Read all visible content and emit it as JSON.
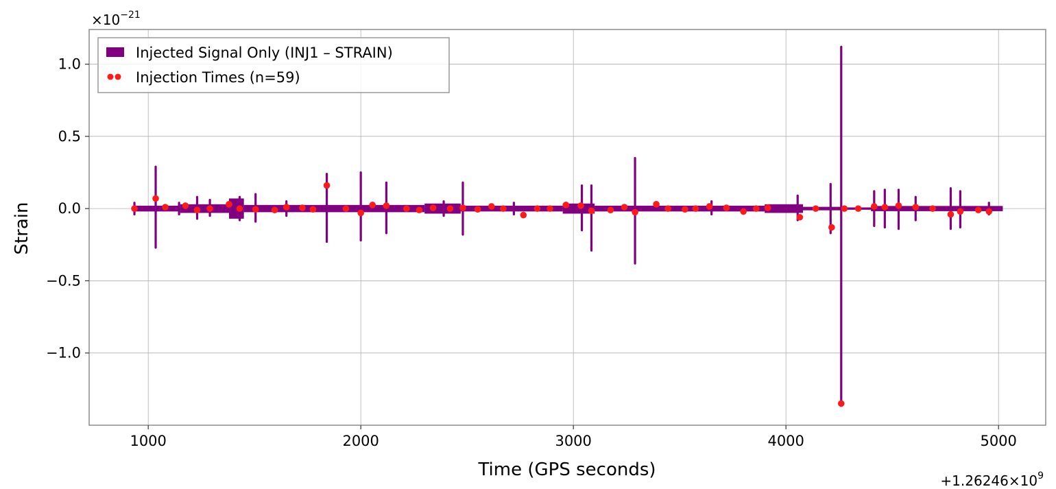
{
  "chart_data": {
    "type": "line",
    "title": "",
    "xlabel": "Time (GPS seconds)",
    "ylabel": "Strain",
    "x_offset_label": "+1.26246×10",
    "x_offset_exp": "9",
    "y_scale_label": "×10",
    "y_scale_exp": "−21",
    "xlim": [
      722,
      5222
    ],
    "ylim": [
      -1.5,
      1.24
    ],
    "x_ticks": [
      {
        "value": 1000,
        "label": "1000"
      },
      {
        "value": 2000,
        "label": "2000"
      },
      {
        "value": 3000,
        "label": "3000"
      },
      {
        "value": 4000,
        "label": "4000"
      },
      {
        "value": 5000,
        "label": "5000"
      }
    ],
    "y_ticks": [
      {
        "value": 1.0,
        "label": "1.0"
      },
      {
        "value": 0.5,
        "label": "0.5"
      },
      {
        "value": 0.0,
        "label": "0.0"
      },
      {
        "value": -0.5,
        "label": "−0.5"
      },
      {
        "value": -1.0,
        "label": "−1.0"
      }
    ],
    "grid": true,
    "legend_position": "top-left",
    "series": [
      {
        "name": "Injected Signal Only (INJ1 – STRAIN)",
        "kind": "band",
        "color": "#800080",
        "x_range": [
          930,
          5020
        ],
        "band_segments": [
          {
            "x0": 930,
            "x1": 1150,
            "amp": 0.02
          },
          {
            "x0": 1150,
            "x1": 1380,
            "amp": 0.03
          },
          {
            "x0": 1380,
            "x1": 1450,
            "amp": 0.07
          },
          {
            "x0": 1450,
            "x1": 2300,
            "amp": 0.025
          },
          {
            "x0": 2300,
            "x1": 2470,
            "amp": 0.035
          },
          {
            "x0": 2470,
            "x1": 2950,
            "amp": 0.02
          },
          {
            "x0": 2950,
            "x1": 3100,
            "amp": 0.035
          },
          {
            "x0": 3100,
            "x1": 3900,
            "amp": 0.02
          },
          {
            "x0": 3900,
            "x1": 4080,
            "amp": 0.03
          },
          {
            "x0": 4080,
            "x1": 4260,
            "amp": 0.012
          },
          {
            "x0": 4260,
            "x1": 4400,
            "amp": 0.008
          },
          {
            "x0": 4400,
            "x1": 5020,
            "amp": 0.018
          }
        ],
        "spikes": [
          {
            "x": 935,
            "y_max": 0.04,
            "y_min": -0.04
          },
          {
            "x": 1035,
            "y_max": 0.29,
            "y_min": -0.27
          },
          {
            "x": 1145,
            "y_max": 0.04,
            "y_min": -0.04
          },
          {
            "x": 1230,
            "y_max": 0.08,
            "y_min": -0.07
          },
          {
            "x": 1290,
            "y_max": 0.06,
            "y_min": -0.05
          },
          {
            "x": 1430,
            "y_max": 0.08,
            "y_min": -0.08
          },
          {
            "x": 1505,
            "y_max": 0.1,
            "y_min": -0.09
          },
          {
            "x": 1650,
            "y_max": 0.05,
            "y_min": -0.05
          },
          {
            "x": 1840,
            "y_max": 0.24,
            "y_min": -0.23
          },
          {
            "x": 2000,
            "y_max": 0.25,
            "y_min": -0.22
          },
          {
            "x": 2120,
            "y_max": 0.18,
            "y_min": -0.17
          },
          {
            "x": 2390,
            "y_max": 0.05,
            "y_min": -0.05
          },
          {
            "x": 2480,
            "y_max": 0.18,
            "y_min": -0.18
          },
          {
            "x": 2720,
            "y_max": 0.04,
            "y_min": -0.04
          },
          {
            "x": 3040,
            "y_max": 0.16,
            "y_min": -0.15
          },
          {
            "x": 3085,
            "y_max": 0.16,
            "y_min": -0.29
          },
          {
            "x": 3290,
            "y_max": 0.35,
            "y_min": -0.38
          },
          {
            "x": 3650,
            "y_max": 0.05,
            "y_min": -0.04
          },
          {
            "x": 4055,
            "y_max": 0.09,
            "y_min": -0.08
          },
          {
            "x": 4210,
            "y_max": 0.17,
            "y_min": -0.17
          },
          {
            "x": 4260,
            "y_max": 1.12,
            "y_min": -1.36
          },
          {
            "x": 4415,
            "y_max": 0.12,
            "y_min": -0.12
          },
          {
            "x": 4465,
            "y_max": 0.13,
            "y_min": -0.13
          },
          {
            "x": 4530,
            "y_max": 0.13,
            "y_min": -0.14
          },
          {
            "x": 4610,
            "y_max": 0.08,
            "y_min": -0.08
          },
          {
            "x": 4775,
            "y_max": 0.14,
            "y_min": -0.14
          },
          {
            "x": 4820,
            "y_max": 0.12,
            "y_min": -0.13
          },
          {
            "x": 4955,
            "y_max": 0.04,
            "y_min": -0.04
          }
        ]
      },
      {
        "name": "Injection Times (n=59)",
        "kind": "scatter",
        "color": "#ff1a1a",
        "points": [
          [
            935,
            0.0
          ],
          [
            1035,
            0.07
          ],
          [
            1080,
            0.01
          ],
          [
            1175,
            0.02
          ],
          [
            1230,
            -0.01
          ],
          [
            1290,
            0.0
          ],
          [
            1380,
            0.03
          ],
          [
            1430,
            0.0
          ],
          [
            1505,
            -0.005
          ],
          [
            1595,
            -0.01
          ],
          [
            1650,
            0.01
          ],
          [
            1725,
            0.005
          ],
          [
            1775,
            -0.005
          ],
          [
            1840,
            0.16
          ],
          [
            1930,
            0.0
          ],
          [
            2000,
            -0.03
          ],
          [
            2055,
            0.025
          ],
          [
            2120,
            0.02
          ],
          [
            2215,
            0.0
          ],
          [
            2275,
            -0.01
          ],
          [
            2340,
            0.005
          ],
          [
            2420,
            0.0
          ],
          [
            2480,
            0.005
          ],
          [
            2550,
            -0.005
          ],
          [
            2615,
            0.015
          ],
          [
            2670,
            0.0
          ],
          [
            2765,
            -0.045
          ],
          [
            2830,
            0.0
          ],
          [
            2890,
            0.0
          ],
          [
            2965,
            0.025
          ],
          [
            3035,
            0.02
          ],
          [
            3085,
            -0.015
          ],
          [
            3175,
            -0.01
          ],
          [
            3240,
            0.01
          ],
          [
            3290,
            -0.025
          ],
          [
            3390,
            0.03
          ],
          [
            3445,
            0.0
          ],
          [
            3525,
            -0.005
          ],
          [
            3575,
            0.0
          ],
          [
            3640,
            0.015
          ],
          [
            3720,
            0.005
          ],
          [
            3800,
            -0.02
          ],
          [
            3860,
            0.0
          ],
          [
            3915,
            0.005
          ],
          [
            4065,
            -0.06
          ],
          [
            4140,
            0.0
          ],
          [
            4215,
            -0.13
          ],
          [
            4260,
            -1.35
          ],
          [
            4340,
            0.0
          ],
          [
            4415,
            0.015
          ],
          [
            4465,
            0.01
          ],
          [
            4530,
            0.02
          ],
          [
            4610,
            0.01
          ],
          [
            4690,
            0.0
          ],
          [
            4775,
            -0.04
          ],
          [
            4820,
            -0.02
          ],
          [
            4905,
            -0.01
          ],
          [
            4955,
            -0.02
          ],
          [
            4275,
            0.0
          ]
        ]
      }
    ],
    "legend": [
      {
        "label": "Injected Signal Only (INJ1 – STRAIN)",
        "marker": "patch",
        "color": "#800080"
      },
      {
        "label": "Injection Times (n=59)",
        "marker": "dots",
        "color": "#ff1a1a"
      }
    ]
  }
}
